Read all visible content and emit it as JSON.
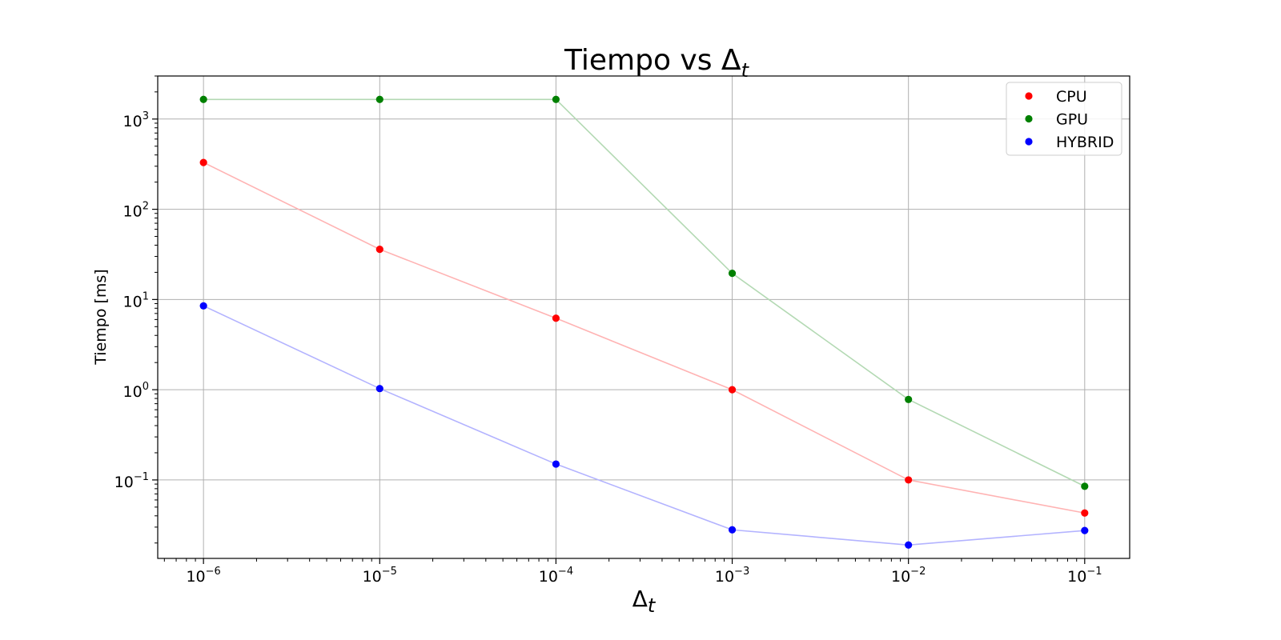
{
  "chart_data": {
    "type": "line",
    "title": "Tiempo vs Δ",
    "title_subscript": "t",
    "xlabel": "Δ",
    "xlabel_subscript": "t",
    "ylabel": "Tiempo [ms]",
    "x_scale": "log",
    "y_scale": "log",
    "xlim": [
      5.5e-07,
      0.18
    ],
    "ylim": [
      0.0135,
      3000
    ],
    "grid": true,
    "legend_position": "top-right",
    "x": [
      1e-06,
      1e-05,
      0.0001,
      0.001,
      0.01,
      0.1
    ],
    "x_ticks": [
      {
        "value": 1e-06,
        "base": "10",
        "exp": "−6"
      },
      {
        "value": 1e-05,
        "base": "10",
        "exp": "−5"
      },
      {
        "value": 0.0001,
        "base": "10",
        "exp": "−4"
      },
      {
        "value": 0.001,
        "base": "10",
        "exp": "−3"
      },
      {
        "value": 0.01,
        "base": "10",
        "exp": "−2"
      },
      {
        "value": 0.1,
        "base": "10",
        "exp": "−1"
      }
    ],
    "y_ticks": [
      {
        "value": 0.1,
        "base": "10",
        "exp": "−1"
      },
      {
        "value": 1,
        "base": "10",
        "exp": "0"
      },
      {
        "value": 10,
        "base": "10",
        "exp": "1"
      },
      {
        "value": 100,
        "base": "10",
        "exp": "2"
      },
      {
        "value": 1000,
        "base": "10",
        "exp": "3"
      }
    ],
    "series": [
      {
        "name": "CPU",
        "color": "#ff0000",
        "line_color": "#ffb3b3",
        "values": [
          330,
          36,
          6.2,
          1.0,
          0.1,
          0.043
        ]
      },
      {
        "name": "GPU",
        "color": "#008000",
        "line_color": "#b3d9b3",
        "values": [
          1650,
          1650,
          1650,
          19.5,
          0.78,
          0.085
        ]
      },
      {
        "name": "HYBRID",
        "color": "#0000ff",
        "line_color": "#b3b3ff",
        "values": [
          8.5,
          1.03,
          0.15,
          0.028,
          0.019,
          0.0275
        ]
      }
    ]
  }
}
